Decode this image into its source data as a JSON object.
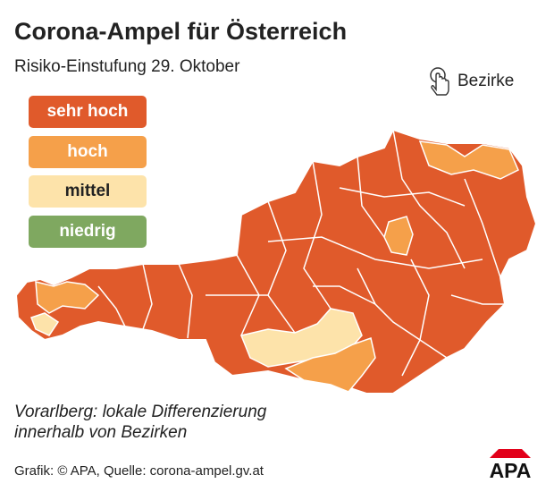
{
  "header": {
    "title": "Corona-Ampel für Österreich",
    "subtitle": "Risiko-Einstufung 29. Oktober"
  },
  "toggle": {
    "label": "Bezirke"
  },
  "legend": [
    "sehr hoch",
    "hoch",
    "mittel",
    "niedrig"
  ],
  "note": [
    "Vorarlberg: lokale Differenzierung",
    "innerhalb von Bezirken"
  ],
  "footer": {
    "source": "Grafik: © APA, Quelle: corona-ampel.gv.at",
    "logo": "APA"
  }
}
